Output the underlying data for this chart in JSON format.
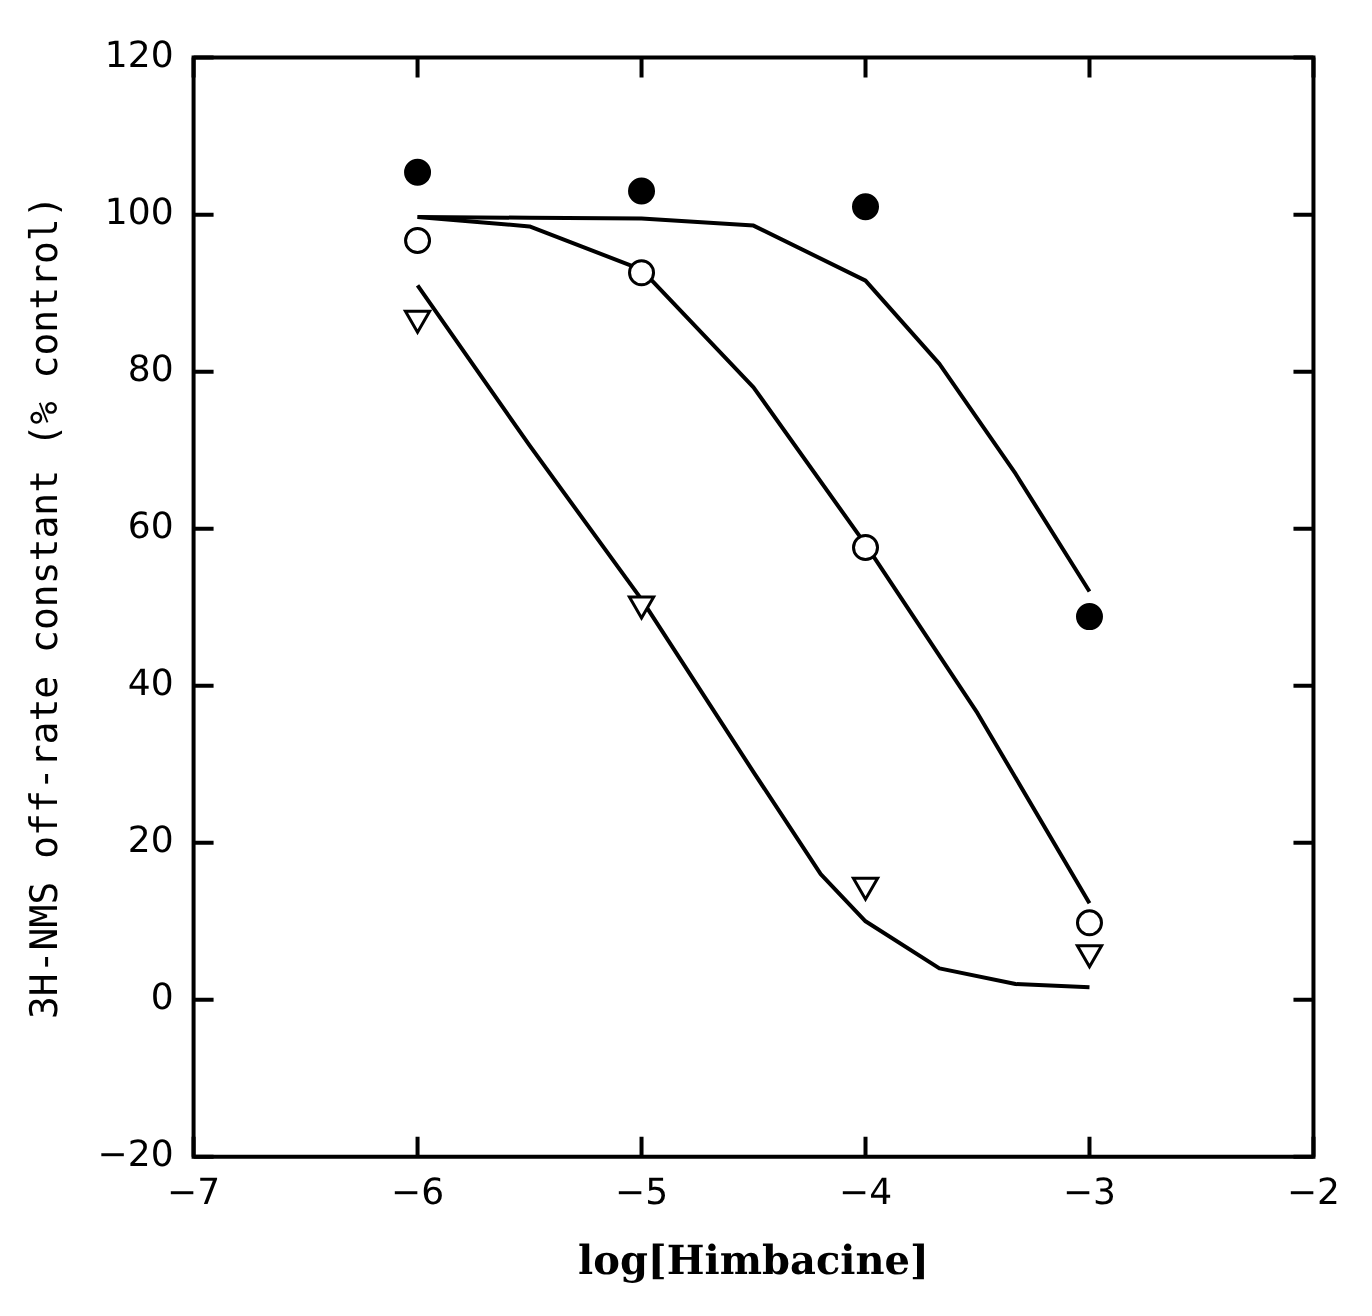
{
  "chart_data": {
    "type": "scatter",
    "xlabel": "log[Himbacine]",
    "ylabel": "3H-NMS off-rate constant (% control)",
    "xlim": [
      -7,
      -2
    ],
    "xticks": [
      -7,
      -6,
      -5,
      -4,
      -3,
      -2
    ],
    "ylim": [
      -20,
      120
    ],
    "yticks": [
      -20,
      0,
      20,
      40,
      60,
      80,
      100,
      120
    ],
    "grid": false,
    "legend": false,
    "series": [
      {
        "marker": "circle",
        "color": "#000000",
        "x": [
          -6,
          -5,
          -4,
          -3
        ],
        "values": [
          105.4,
          103,
          101,
          48.8
        ]
      },
      {
        "marker": "circle",
        "color": "#000000",
        "x": [
          -6,
          -5,
          -4,
          -3
        ],
        "values": [
          96.7,
          92.6,
          57.6,
          9.8
        ]
      },
      {
        "marker": "triangle",
        "color": "#000000",
        "x": [
          -6,
          -5,
          -4,
          -3
        ],
        "values": [
          86.8,
          50.4,
          14.6,
          6
        ]
      },
      {
        "type": "line",
        "marker": "none",
        "color": "#000000",
        "x": [
          -6,
          -5.5,
          -5,
          -4.5,
          -4,
          -3.67,
          -3.33,
          -3
        ],
        "values": [
          99.7,
          99.6,
          99.5,
          98.6,
          91.6,
          81,
          67,
          52
        ]
      },
      {
        "type": "line",
        "marker": "none",
        "color": "#000000",
        "x": [
          -6,
          -5.5,
          -5,
          -4.5,
          -4,
          -3.5,
          -3
        ],
        "values": [
          99.7,
          98.5,
          93,
          78,
          58,
          36.5,
          12.3
        ]
      },
      {
        "type": "line",
        "marker": "none",
        "color": "#000000",
        "x": [
          -6,
          -5.5,
          -5,
          -4.5,
          -4.2,
          -4,
          -3.67,
          -3.33,
          -3
        ],
        "values": [
          91,
          70.6,
          51,
          29,
          16,
          10,
          4,
          2,
          1.6
        ]
      }
    ]
  }
}
